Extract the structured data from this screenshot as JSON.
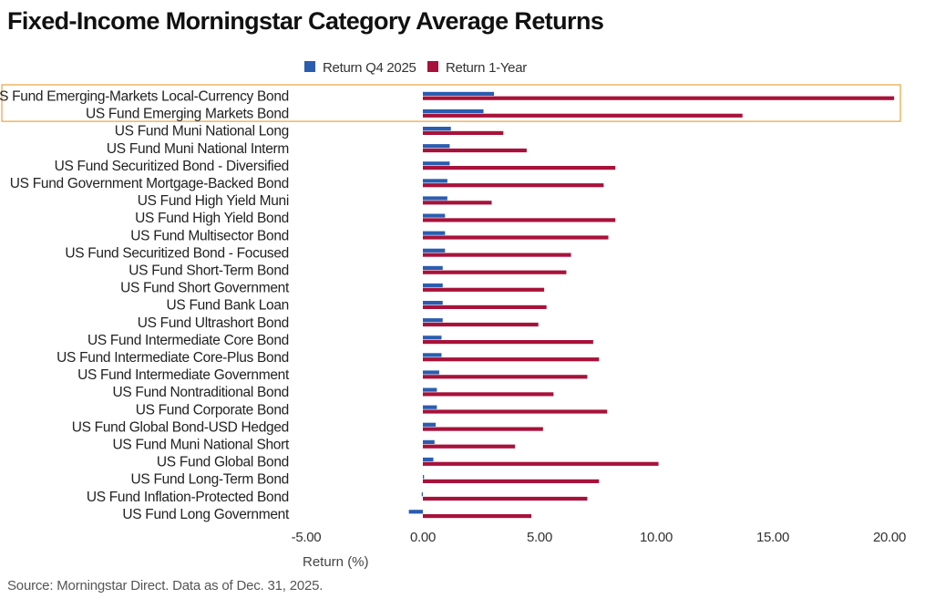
{
  "title": "Fixed-Income Morningstar Category Average Returns",
  "source": "Source: Morningstar Direct. Data as of Dec. 31, 2025.",
  "chart_data": {
    "type": "bar",
    "orientation": "horizontal",
    "xlabel": "Return (%)",
    "xlim": [
      -5,
      20
    ],
    "x_ticks": [
      -5,
      0,
      5,
      10,
      15,
      20
    ],
    "x_tick_labels": [
      "-5.00",
      "0.00",
      "5.00",
      "10.00",
      "15.00",
      "20.00"
    ],
    "grid": false,
    "legend_position": "top",
    "highlighted_categories": [
      0,
      1
    ],
    "highlight_color": "#e8a33d",
    "categories": [
      "US Fund Emerging-Markets Local-Currency Bond",
      "US Fund Emerging Markets Bond",
      "US Fund Muni National Long",
      "US Fund Muni National Interm",
      "US Fund Securitized Bond - Diversified",
      "US Fund Government Mortgage-Backed Bond",
      "US Fund High Yield Muni",
      "US Fund High Yield Bond",
      "US Fund Multisector Bond",
      "US Fund Securitized Bond - Focused",
      "US Fund Short-Term Bond",
      "US Fund Short Government",
      "US Fund Bank Loan",
      "US Fund Ultrashort Bond",
      "US Fund Intermediate Core Bond",
      "US Fund Intermediate Core-Plus Bond",
      "US Fund Intermediate Government",
      "US Fund Nontraditional Bond",
      "US Fund Corporate Bond",
      "US Fund Global Bond-USD Hedged",
      "US Fund Muni National Short",
      "US Fund Global Bond",
      "US Fund Long-Term Bond",
      "US Fund Inflation-Protected Bond",
      "US Fund Long Government"
    ],
    "series": [
      {
        "name": "Return Q4 2025",
        "color": "#2a5db0",
        "values": [
          3.05,
          2.6,
          1.2,
          1.15,
          1.15,
          1.05,
          1.05,
          0.95,
          0.95,
          0.95,
          0.85,
          0.85,
          0.85,
          0.85,
          0.8,
          0.8,
          0.7,
          0.6,
          0.6,
          0.55,
          0.5,
          0.45,
          0.05,
          -0.05,
          -0.6
        ]
      },
      {
        "name": "Return 1-Year",
        "color": "#a8123a",
        "values": [
          20.2,
          13.7,
          3.45,
          4.45,
          8.25,
          7.75,
          2.95,
          8.25,
          7.95,
          6.35,
          6.15,
          5.2,
          5.3,
          4.95,
          7.3,
          7.55,
          7.05,
          5.6,
          7.9,
          5.15,
          3.95,
          10.1,
          7.55,
          7.05,
          4.65
        ]
      }
    ]
  }
}
